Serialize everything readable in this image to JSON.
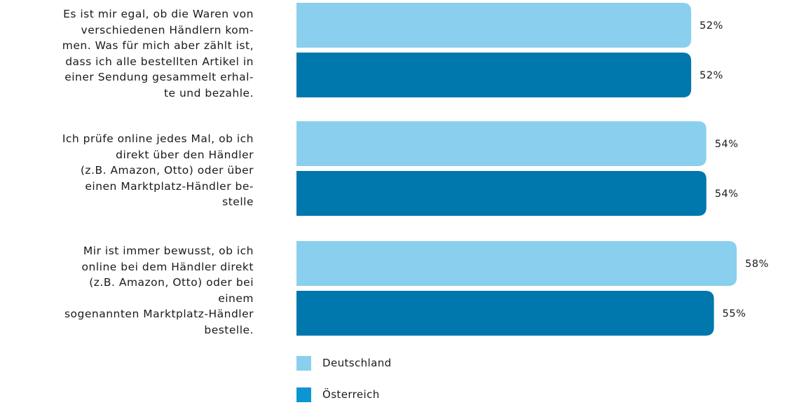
{
  "chart_data": {
    "type": "bar",
    "orientation": "horizontal",
    "categories": [
      [
        "Es ist mir egal, ob die Waren von",
        "verschiedenen Händlern kom-",
        "men. Was für mich aber zählt ist,",
        "dass ich alle bestellten Artikel in",
        "einer Sendung gesammelt erhal-",
        "te und bezahle."
      ],
      [
        "Ich prüfe online jedes Mal, ob ich",
        "direkt über den Händler",
        "(z.B. Amazon, Otto) oder über",
        "einen Marktplatz-Händler be-",
        "stelle"
      ],
      [
        "Mir ist immer bewusst, ob ich",
        "online bei dem Händler direkt",
        "(z.B. Amazon, Otto) oder bei",
        "einem",
        "sogenannten Marktplatz-Händler",
        "bestelle."
      ]
    ],
    "series": [
      {
        "name": "Deutschland",
        "color": "#8acfee",
        "values": [
          52,
          54,
          58
        ],
        "labels": [
          "52%",
          "54%",
          "58%"
        ]
      },
      {
        "name": "Österreich",
        "color": "#0077ad",
        "values": [
          52,
          54,
          55
        ],
        "labels": [
          "52%",
          "54%",
          "55%"
        ]
      }
    ],
    "legend_placement": "bottom",
    "grid": false,
    "xlim": [
      0,
      100
    ]
  },
  "legend": {
    "items": [
      {
        "label": "Deutschland",
        "color": "#8acfee"
      },
      {
        "label": "Österreich",
        "color": "#0b95d3"
      }
    ]
  }
}
